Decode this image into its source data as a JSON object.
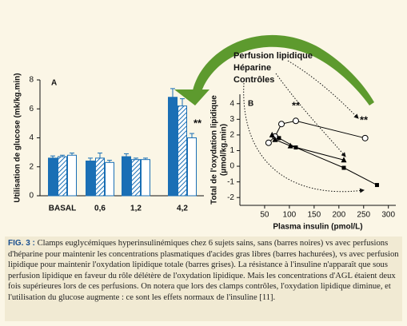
{
  "chart_data": [
    {
      "type": "bar",
      "title": "A",
      "ylabel": "Utilisation de glucose (mk/kg.min)",
      "categories": [
        "BASAL",
        "0,6",
        "1,2",
        "4,2"
      ],
      "ylim": [
        0,
        8
      ],
      "yticks": [
        0,
        2,
        4,
        6,
        8
      ],
      "series": [
        {
          "color": "#1a6fb5",
          "fill": "solid",
          "values": [
            2.6,
            2.4,
            2.7,
            6.8
          ],
          "errors": [
            0.15,
            0.2,
            0.2,
            0.6
          ]
        },
        {
          "color": "#1a6fb5",
          "fill": "hatched",
          "values": [
            2.7,
            2.6,
            2.5,
            6.2
          ],
          "errors": [
            0.1,
            0.35,
            0.1,
            0.5
          ]
        },
        {
          "color": "#1a6fb5",
          "fill": "open",
          "values": [
            2.8,
            2.3,
            2.5,
            4.0
          ],
          "errors": [
            0.15,
            0.15,
            0.1,
            0.3
          ]
        }
      ],
      "annotations": [
        "**"
      ]
    },
    {
      "type": "line",
      "title": "B",
      "xlabel": "Plasma insulin (pmol/L)",
      "ylabel": [
        "Total de l'oxydation lipidique",
        "(µmol/kg.min)"
      ],
      "xlim": [
        0,
        315
      ],
      "xticks": [
        50,
        100,
        150,
        200,
        250,
        300
      ],
      "ylim": [
        -2.5,
        4.6
      ],
      "yticks": [
        -2,
        -1,
        0,
        1,
        2,
        3,
        4
      ],
      "series": [
        {
          "name": "Perfusion lipidique",
          "color": "#000000",
          "marker": "open-circle",
          "x": [
            58,
            71,
            84,
            113,
            253
          ],
          "values": [
            1.5,
            1.9,
            2.7,
            2.9,
            1.8
          ]
        },
        {
          "name": "Héparine",
          "color": "#000000",
          "marker": "triangle",
          "x": [
            65,
            71,
            102,
            210
          ],
          "values": [
            2.0,
            1.7,
            1.3,
            0.4
          ]
        },
        {
          "name": "Contrôles",
          "color": "#000000",
          "marker": "square",
          "x": [
            79,
            113,
            210,
            277
          ],
          "values": [
            1.8,
            1.2,
            -0.1,
            -1.2
          ]
        }
      ],
      "annotations": [
        "**",
        "**"
      ]
    }
  ],
  "caption": {
    "label": "FIG. 3 :",
    "text": "Clamps euglycémiques hyperinsulinémiques chez 6 sujets sains, sans (barres noires) vs avec perfusions d'héparine pour maintenir les concentrations plasmatiques d'acides gras libres (barres hachurées), vs avec perfusion lipidique pour maintenir l'oxydation lipidique totale (barres grises). La résistance à l'insuline n'apparaît que sous perfusion lipidique en faveur du rôle délétère de l'oxydation lipidique. Mais les concentrations d'AGL étaient deux fois supérieures lors de ces perfusions. On notera que lors des clamps contrôles, l'oxydation lipidique diminue, et l'utilisation du glucose augmente : ce sont les effets normaux de l'insuline [11]."
  }
}
